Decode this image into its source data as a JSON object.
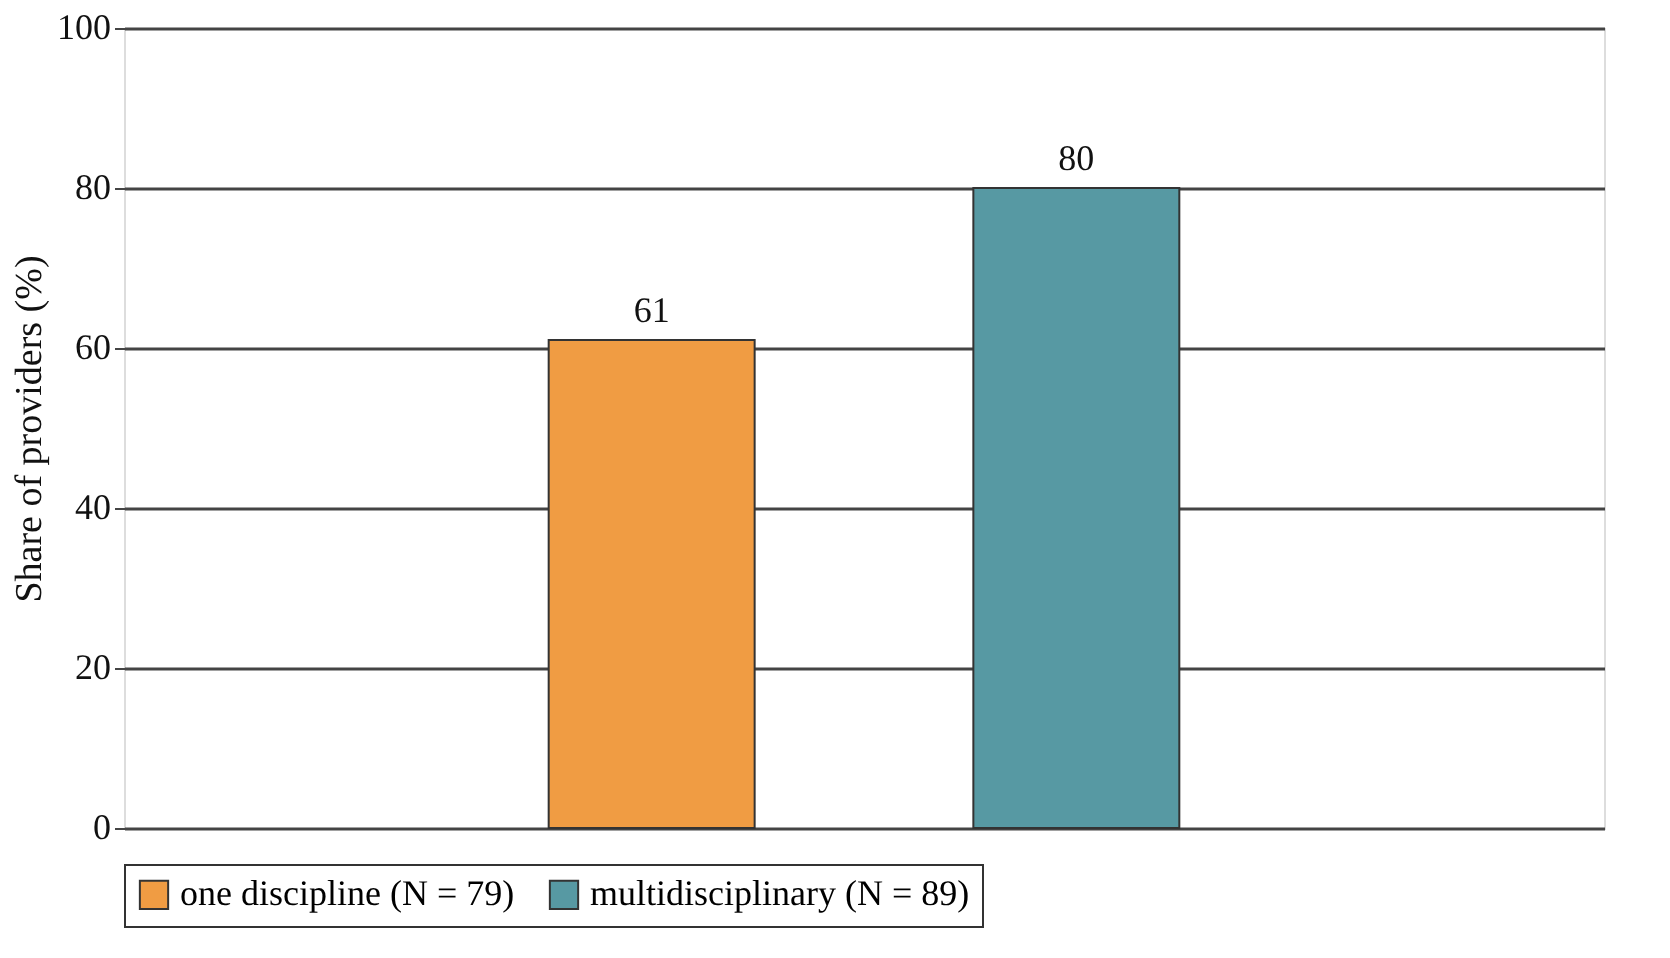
{
  "chart_data": {
    "type": "bar",
    "ylabel": "Share of providers (%)",
    "categories": [
      null,
      null
    ],
    "series": [
      {
        "name": "one discipline (N = 79)",
        "color": "#f09c43",
        "values": [
          61,
          null
        ]
      },
      {
        "name": "multidisciplinary (N = 89)",
        "color": "#5799a3",
        "values": [
          null,
          80
        ]
      }
    ],
    "ylim": [
      0,
      100
    ],
    "yticks": [
      0,
      20,
      40,
      60,
      80,
      100
    ],
    "grid": "y",
    "data_labels": true,
    "legend": "bottom"
  }
}
